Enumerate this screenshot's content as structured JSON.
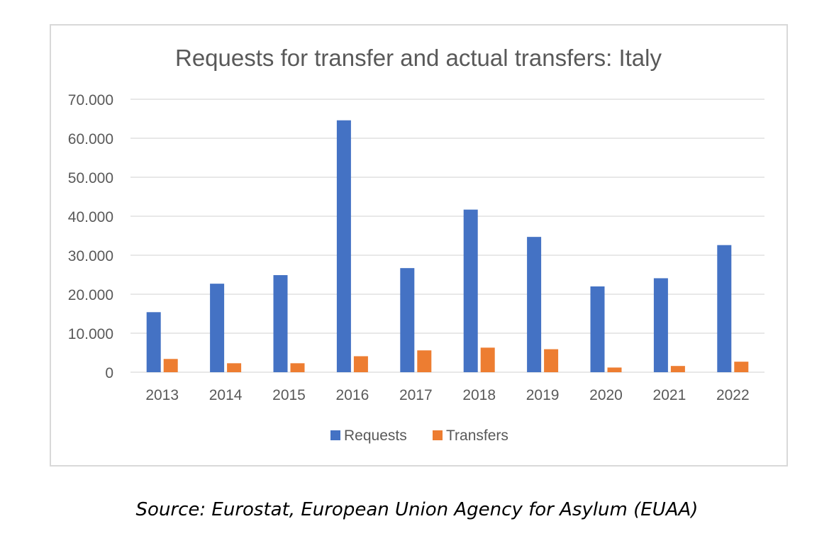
{
  "chart_data": {
    "type": "bar",
    "title": "Requests for transfer and actual transfers: Italy",
    "categories": [
      "2013",
      "2014",
      "2015",
      "2016",
      "2017",
      "2018",
      "2019",
      "2020",
      "2021",
      "2022"
    ],
    "series": [
      {
        "name": "Requests",
        "color": "#4472c4",
        "values": [
          15400,
          22700,
          24900,
          64600,
          26700,
          41700,
          34700,
          22000,
          24100,
          32600
        ]
      },
      {
        "name": "Transfers",
        "color": "#ed7d31",
        "values": [
          3400,
          2300,
          2300,
          4100,
          5600,
          6300,
          5900,
          1200,
          1600,
          2700
        ]
      }
    ],
    "yticks": [
      "0",
      "10.000",
      "20.000",
      "30.000",
      "40.000",
      "50.000",
      "60.000",
      "70.000"
    ],
    "ylim": [
      0,
      70000
    ],
    "ystep": 10000,
    "grid": true,
    "legend": "bottom"
  },
  "source_note": "Source: Eurostat, European Union Agency for Asylum (EUAA)"
}
